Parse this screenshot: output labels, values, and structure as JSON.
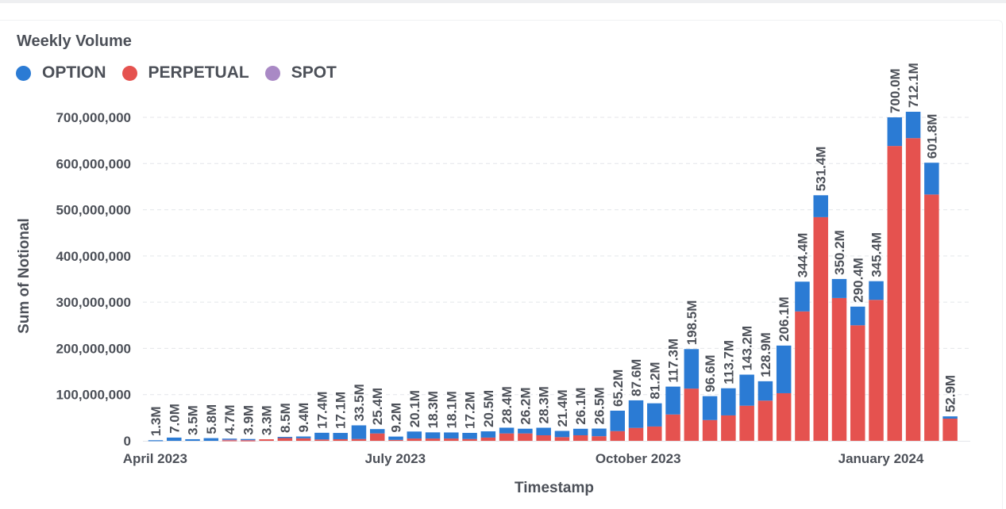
{
  "chart_data": {
    "type": "bar",
    "stacked": true,
    "title": "Weekly Volume",
    "xlabel": "Timestamp",
    "ylabel": "Sum of Notional",
    "ylim": [
      0,
      700000000
    ],
    "grid": true,
    "legend_position": "top-left",
    "y_ticks": [
      "0",
      "100,000,000",
      "200,000,000",
      "300,000,000",
      "400,000,000",
      "500,000,000",
      "600,000,000",
      "700,000,000"
    ],
    "x_ticks": [
      {
        "label": "April 2023",
        "date": "2023-04-01"
      },
      {
        "label": "July 2023",
        "date": "2023-07-01"
      },
      {
        "label": "October 2023",
        "date": "2023-10-01"
      },
      {
        "label": "January 2024",
        "date": "2024-01-01"
      }
    ],
    "x": [
      "2023-04-03",
      "2023-04-10",
      "2023-04-17",
      "2023-04-24",
      "2023-05-01",
      "2023-05-08",
      "2023-05-15",
      "2023-05-22",
      "2023-05-29",
      "2023-06-05",
      "2023-06-12",
      "2023-06-19",
      "2023-06-26",
      "2023-07-03",
      "2023-07-10",
      "2023-07-17",
      "2023-07-24",
      "2023-07-31",
      "2023-08-07",
      "2023-08-14",
      "2023-08-21",
      "2023-08-28",
      "2023-09-04",
      "2023-09-11",
      "2023-09-18",
      "2023-09-25",
      "2023-10-02",
      "2023-10-09",
      "2023-10-16",
      "2023-10-23",
      "2023-10-30",
      "2023-11-06",
      "2023-11-13",
      "2023-11-20",
      "2023-11-27",
      "2023-12-04",
      "2023-12-11",
      "2023-12-18",
      "2023-12-25",
      "2024-01-01",
      "2024-01-08",
      "2024-01-15",
      "2024-01-22",
      "2024-01-29"
    ],
    "series": [
      {
        "name": "PERPETUAL",
        "color": "#E5524F",
        "values": [
          0,
          0,
          0,
          0,
          1200000,
          1000000,
          3300000,
          6000000,
          5500000,
          3000000,
          3500000,
          4000000,
          16000000,
          2000000,
          5000000,
          5000000,
          5000000,
          4000000,
          7000000,
          16000000,
          16000000,
          12000000,
          8000000,
          12000000,
          10000000,
          21000000,
          28000000,
          31000000,
          57000000,
          113000000,
          45000000,
          55000000,
          76000000,
          87000000,
          103000000,
          280000000,
          484000000,
          309000000,
          250000000,
          305000000,
          638000000,
          655000000,
          533000000,
          48000000
        ]
      },
      {
        "name": "SPOT",
        "color": "#A989C5",
        "values": [
          0,
          0,
          0,
          0,
          2500000,
          2000000,
          0,
          0,
          0,
          0,
          0,
          0,
          0,
          0,
          0,
          0,
          0,
          0,
          0,
          0,
          0,
          0,
          0,
          0,
          0,
          0,
          0,
          0,
          0,
          0,
          0,
          0,
          0,
          0,
          0,
          0,
          0,
          0,
          0,
          0,
          0,
          0,
          0,
          0
        ]
      },
      {
        "name": "OPTION",
        "color": "#2B7BD4",
        "values": [
          1300000,
          7000000,
          3500000,
          5800000,
          1000000,
          900000,
          0,
          2500000,
          3900000,
          14400000,
          13600000,
          29500000,
          9400000,
          7200000,
          15100000,
          13300000,
          13100000,
          13200000,
          13500000,
          12400000,
          10200000,
          16300000,
          13400000,
          14100000,
          16500000,
          44200000,
          59600000,
          50200000,
          60300000,
          85500000,
          51600000,
          58700000,
          67200000,
          41900000,
          103100000,
          64400000,
          47400000,
          41200000,
          40400000,
          40400000,
          62000000,
          57100000,
          68800000,
          4900000
        ]
      }
    ],
    "data_labels": [
      "1.3M",
      "7.0M",
      "3.5M",
      "5.8M",
      "4.7M",
      "3.9M",
      "3.3M",
      "8.5M",
      "9.4M",
      "17.4M",
      "17.1M",
      "33.5M",
      "25.4M",
      "9.2M",
      "20.1M",
      "18.3M",
      "18.1M",
      "17.2M",
      "20.5M",
      "28.4M",
      "26.2M",
      "28.3M",
      "21.4M",
      "26.1M",
      "26.5M",
      "65.2M",
      "87.6M",
      "81.2M",
      "117.3M",
      "198.5M",
      "96.6M",
      "113.7M",
      "143.2M",
      "128.9M",
      "206.1M",
      "344.4M",
      "531.4M",
      "350.2M",
      "290.4M",
      "345.4M",
      "700.0M",
      "712.1M",
      "601.8M",
      "52.9M"
    ]
  },
  "legend": [
    {
      "label": "OPTION",
      "color": "#2B7BD4"
    },
    {
      "label": "PERPETUAL",
      "color": "#E5524F"
    },
    {
      "label": "SPOT",
      "color": "#A989C5"
    }
  ]
}
